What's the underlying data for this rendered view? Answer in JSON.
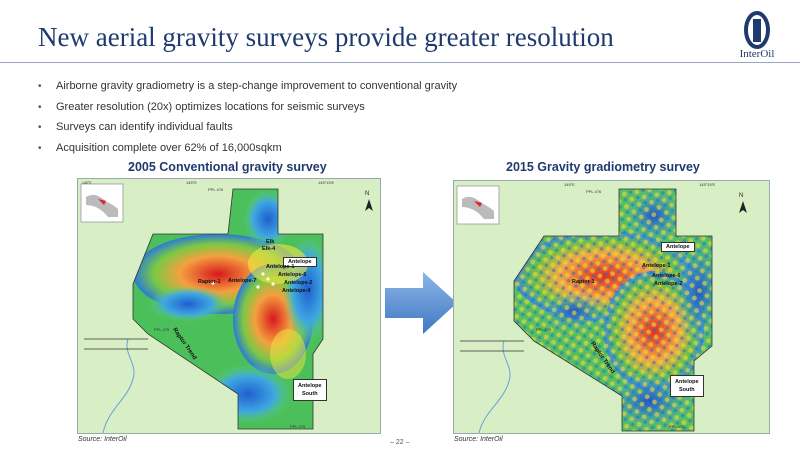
{
  "slide": {
    "title": "New aerial gravity surveys provide greater resolution",
    "page_number": "– 22 –"
  },
  "logo": {
    "text": "InterOil",
    "icon": "interoil-logo-icon",
    "color": "#1f3a6e"
  },
  "bullets": [
    "Airborne gravity gradiometry is a step-change improvement to conventional gravity",
    "Greater resolution (20x) optimizes locations for seismic surveys",
    "Surveys can identify individual faults",
    "Acquisition complete over 62% of 16,000sqkm"
  ],
  "panels": {
    "left": {
      "title": "2005 Conventional gravity survey",
      "source": "Source: InterOil",
      "labels": {
        "antelope": "Antelope",
        "antelope_south": "Antelope\nSouth",
        "raptor_trend": "Raptor Trend",
        "raptor1": "Raptor-1",
        "elk": "Elk",
        "elk4": "Elk-4",
        "antelope1": "Antelope-1",
        "antelope2": "Antelope-2",
        "antelope4": "Antelope-4",
        "antelope6": "Antelope-6",
        "antelope7": "Antelope-7",
        "ppl_top": "PPL 476",
        "ppl_left": "PPL 475",
        "ppl_bottom": "PPL 475",
        "north": "N",
        "coord_a": "145°E",
        "coord_b": "145°15'E"
      }
    },
    "right": {
      "title": "2015 Gravity gradiometry survey",
      "source": "Source: InterOil",
      "labels": {
        "antelope": "Antelope",
        "antelope_south": "Antelope\nSouth",
        "raptor_trend": "Raptor Trend",
        "raptor1": "Raptor-1",
        "antelope1": "Antelope-1",
        "antelope2": "Antelope-2",
        "antelope6": "Antelope-6",
        "ppl_top": "PPL 476",
        "ppl_left": "PPL 475",
        "ppl_bottom": "PPL 475",
        "north": "N",
        "coord_a": "145°E",
        "coord_b": "145°15'E"
      }
    }
  },
  "colors": {
    "title": "#1f3a6e",
    "arrow": "#5b8fd0",
    "map_background": "#d8efc6"
  }
}
